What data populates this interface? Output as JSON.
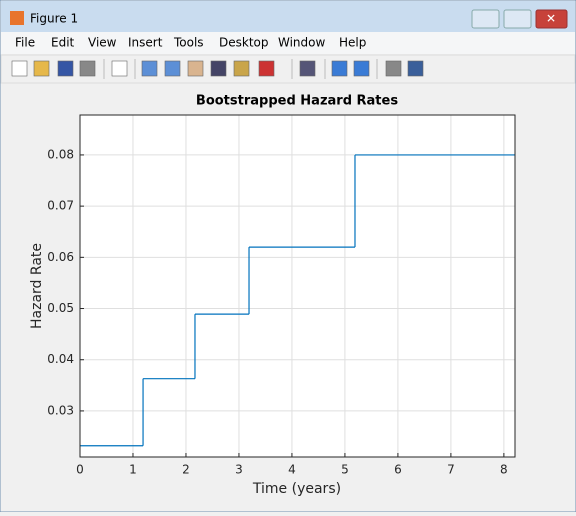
{
  "window": {
    "title": "Figure 1",
    "menu": [
      "File",
      "Edit",
      "View",
      "Insert",
      "Tools",
      "Desktop",
      "Window",
      "Help"
    ]
  },
  "chart_data": {
    "type": "stairs",
    "title": "Bootstrapped Hazard Rates",
    "x_label": "Time (years)",
    "y_label": "Hazard Rate",
    "x": [
      0,
      1.19,
      2.17,
      3.19,
      5.19
    ],
    "values": [
      0.0232,
      0.0363,
      0.0489,
      0.062,
      0.08
    ],
    "color": "#0072bd",
    "xlim": [
      0,
      8.21
    ],
    "ylim": [
      0.021,
      0.0878
    ],
    "xticks": [
      0,
      1,
      2,
      3,
      4,
      5,
      6,
      7,
      8
    ],
    "yticks": [
      0.03,
      0.04,
      0.05,
      0.06,
      0.07,
      0.08
    ],
    "grid": true
  }
}
